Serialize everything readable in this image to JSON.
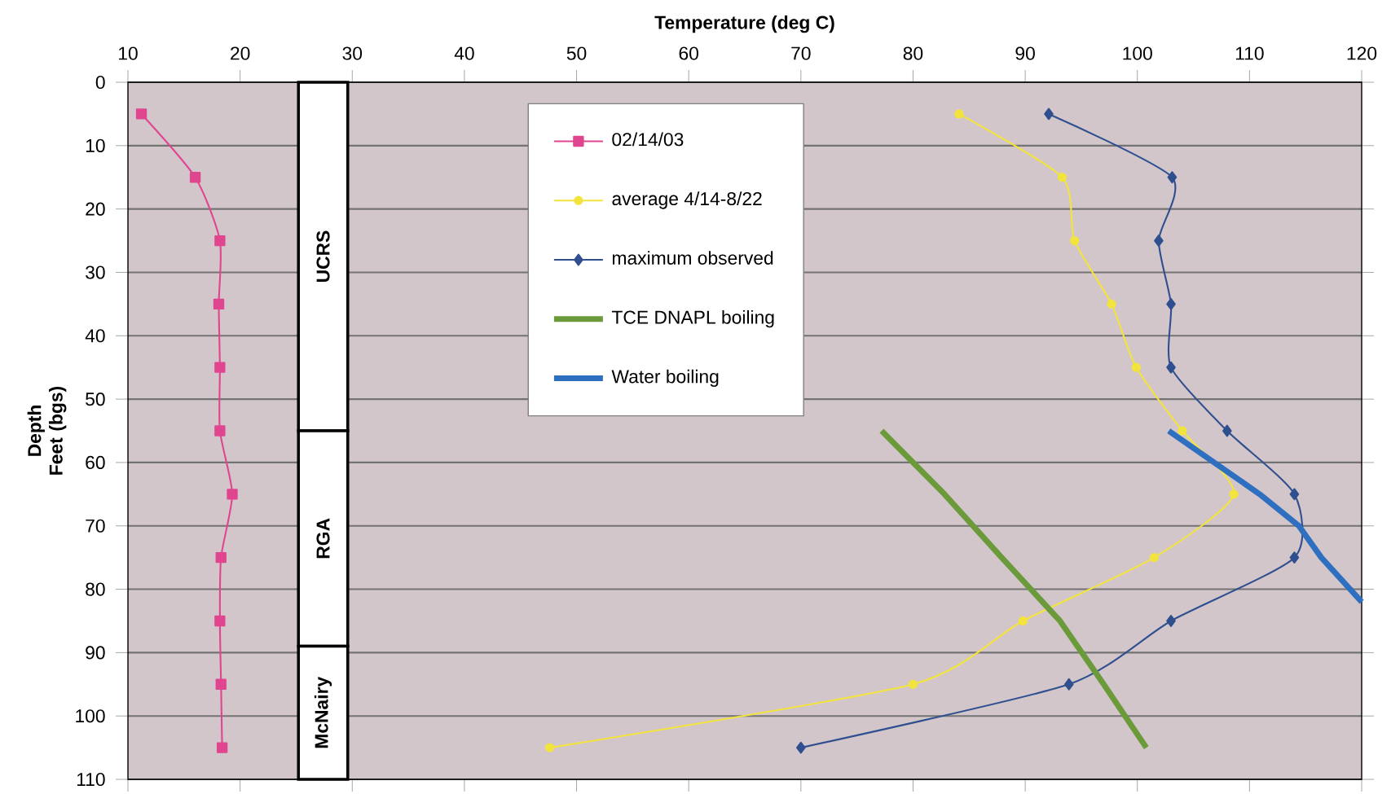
{
  "chart_data": {
    "type": "line",
    "xlabel": "Temperature (deg C)",
    "ylabel": "Depth Feet (bgs)",
    "xlim": [
      10,
      120
    ],
    "xticks": [
      10,
      20,
      30,
      40,
      50,
      60,
      70,
      80,
      90,
      100,
      110,
      120
    ],
    "ylim": [
      110,
      0
    ],
    "yticks": [
      0,
      10,
      20,
      30,
      40,
      50,
      60,
      70,
      80,
      90,
      100,
      110
    ],
    "grid": "y",
    "legend": "top",
    "series": [
      {
        "name": "02/14/03",
        "color": "#e0458f",
        "marker": "square",
        "x": [
          11.2,
          16.0,
          18.2,
          18.1,
          18.2,
          18.2,
          19.3,
          18.3,
          18.2,
          18.3,
          18.4
        ],
        "values": [
          5,
          15,
          25,
          35,
          45,
          55,
          65,
          75,
          85,
          95,
          105
        ]
      },
      {
        "name": "average 4/14-8/22",
        "color": "#f2e43c",
        "marker": "circle",
        "x": [
          84.1,
          93.3,
          94.4,
          97.7,
          99.9,
          104.0,
          108.6,
          101.5,
          89.8,
          80.0,
          47.6
        ],
        "values": [
          5,
          15,
          25,
          35,
          45,
          55,
          65,
          75,
          85,
          95,
          105
        ]
      },
      {
        "name": "maximum observed",
        "color": "#2f4f8f",
        "marker": "diamond",
        "x": [
          92.1,
          103.1,
          101.9,
          103.0,
          103.0,
          108.0,
          114.0,
          114.0,
          103.0,
          93.9,
          70.0
        ],
        "values": [
          5,
          15,
          25,
          35,
          45,
          55,
          65,
          75,
          85,
          95,
          105
        ]
      },
      {
        "name": "TCE DNAPL boiling",
        "color": "#6b9a3a",
        "marker": "none",
        "x": [
          77.2,
          82.8,
          87.9,
          93.1,
          97.0,
          100.8
        ],
        "values": [
          55,
          65,
          75,
          85,
          95,
          105
        ]
      },
      {
        "name": "Water boiling",
        "color": "#2f6fc0",
        "marker": "none",
        "x": [
          102.8,
          110.9,
          114.4,
          116.4,
          120.0
        ],
        "values": [
          55,
          65,
          70,
          75,
          82
        ]
      },
      {
        "type": "bar",
        "color": "#ffffff",
        "x": [
          27.4
        ],
        "base": [
          0
        ],
        "values": [
          55
        ],
        "value_labels": [
          "UCRS"
        ]
      },
      {
        "type": "bar",
        "color": "#ffffff",
        "x": [
          27.4
        ],
        "base": [
          55
        ],
        "values": [
          34
        ],
        "value_labels": [
          "RGA"
        ]
      },
      {
        "type": "bar",
        "color": "#ffffff",
        "x": [
          27.4
        ],
        "base": [
          89
        ],
        "values": [
          21
        ],
        "value_labels": [
          "McNairy"
        ]
      }
    ]
  }
}
